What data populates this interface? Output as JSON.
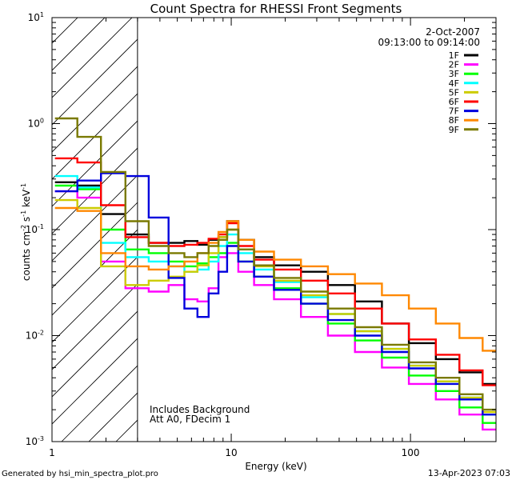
{
  "chart_data": {
    "type": "line",
    "title": "Count Spectra for RHESSI Front Segments",
    "xlabel": "Energy (keV)",
    "ylabel": {
      "base": "counts cm",
      "exp1": "-2",
      "mid": " s",
      "exp2": "-1",
      "tail": " keV",
      "exp3": "-1"
    },
    "xscale": "log",
    "yscale": "log",
    "xlim": [
      1,
      300
    ],
    "ylim": [
      0.001,
      10
    ],
    "x_ticks": [
      {
        "value": 1,
        "label": "1"
      },
      {
        "value": 10,
        "label": "10"
      },
      {
        "value": 100,
        "label": "100"
      }
    ],
    "y_ticks": [
      {
        "value": 0.001,
        "base": "10",
        "exp": "-3"
      },
      {
        "value": 0.01,
        "base": "10",
        "exp": "-2"
      },
      {
        "value": 0.1,
        "base": "10",
        "exp": "-1"
      },
      {
        "value": 1,
        "base": "10",
        "exp": "0"
      },
      {
        "value": 10,
        "base": "10",
        "exp": "1"
      }
    ],
    "date": "2-Oct-2007",
    "time_range": "09:13:00 to 09:14:00",
    "hatched_region_max_kev": 3,
    "annotations": [
      "Includes Background",
      "Att A0, FDecim 1"
    ],
    "footer_left": "Generated by hsi_min_spectra_plot.pro",
    "footer_right": "13-Apr-2023 07:03",
    "series": [
      {
        "name": "1F",
        "color": "#000000",
        "values": [
          0.28,
          0.26,
          0.14,
          0.09,
          0.075,
          0.075,
          0.078,
          0.072,
          0.08,
          0.085,
          0.12,
          0.08,
          0.055,
          0.046,
          0.04,
          0.03,
          0.021,
          0.013,
          0.0085,
          0.006,
          0.0045,
          0.0035
        ]
      },
      {
        "name": "2F",
        "color": "#ff00ff",
        "values": [
          0.23,
          0.2,
          0.05,
          0.028,
          0.026,
          0.03,
          0.022,
          0.021,
          0.028,
          0.055,
          0.06,
          0.04,
          0.03,
          0.022,
          0.015,
          0.01,
          0.007,
          0.005,
          0.0035,
          0.0025,
          0.0018,
          0.0013
        ]
      },
      {
        "name": "3F",
        "color": "#00ff00",
        "values": [
          0.26,
          0.24,
          0.1,
          0.065,
          0.06,
          0.05,
          0.045,
          0.048,
          0.055,
          0.06,
          0.075,
          0.05,
          0.036,
          0.028,
          0.02,
          0.013,
          0.009,
          0.0062,
          0.0042,
          0.003,
          0.0021,
          0.0015
        ]
      },
      {
        "name": "4F",
        "color": "#00ffff",
        "values": [
          0.32,
          0.25,
          0.075,
          0.055,
          0.05,
          0.045,
          0.04,
          0.042,
          0.05,
          0.07,
          0.09,
          0.06,
          0.042,
          0.032,
          0.023,
          0.016,
          0.011,
          0.0075,
          0.0052,
          0.0037,
          0.0026,
          0.0018
        ]
      },
      {
        "name": "5F",
        "color": "#cccc00",
        "values": [
          0.19,
          0.16,
          0.045,
          0.03,
          0.033,
          0.036,
          0.04,
          0.046,
          0.06,
          0.085,
          0.1,
          0.065,
          0.045,
          0.033,
          0.024,
          0.016,
          0.011,
          0.0075,
          0.0052,
          0.0037,
          0.0026,
          0.0019
        ]
      },
      {
        "name": "6F",
        "color": "#ff0000",
        "values": [
          0.47,
          0.43,
          0.17,
          0.085,
          0.075,
          0.07,
          0.072,
          0.075,
          0.082,
          0.09,
          0.115,
          0.07,
          0.052,
          0.042,
          0.033,
          0.025,
          0.018,
          0.013,
          0.0092,
          0.0066,
          0.0047,
          0.0034
        ]
      },
      {
        "name": "7F",
        "color": "#0000dd",
        "values": [
          0.23,
          0.29,
          0.34,
          0.32,
          0.13,
          0.035,
          0.018,
          0.015,
          0.025,
          0.04,
          0.07,
          0.05,
          0.036,
          0.027,
          0.02,
          0.014,
          0.01,
          0.007,
          0.0049,
          0.0035,
          0.0025,
          0.0018
        ]
      },
      {
        "name": "8F",
        "color": "#ff8800",
        "values": [
          0.16,
          0.15,
          0.06,
          0.045,
          0.042,
          0.045,
          0.05,
          0.06,
          0.075,
          0.095,
          0.12,
          0.08,
          0.062,
          0.052,
          0.045,
          0.038,
          0.031,
          0.024,
          0.018,
          0.013,
          0.0095,
          0.0072
        ]
      },
      {
        "name": "9F",
        "color": "#7a7a00",
        "values": [
          1.12,
          0.75,
          0.35,
          0.12,
          0.07,
          0.06,
          0.055,
          0.06,
          0.07,
          0.08,
          0.1,
          0.065,
          0.046,
          0.035,
          0.026,
          0.018,
          0.012,
          0.0082,
          0.0056,
          0.004,
          0.0028,
          0.002
        ]
      }
    ],
    "x": [
      1.2,
      1.6,
      2.2,
      3,
      4,
      5,
      6,
      7,
      8,
      9,
      10,
      12,
      15,
      20,
      30,
      40,
      60,
      80,
      120,
      160,
      220,
      290
    ]
  }
}
